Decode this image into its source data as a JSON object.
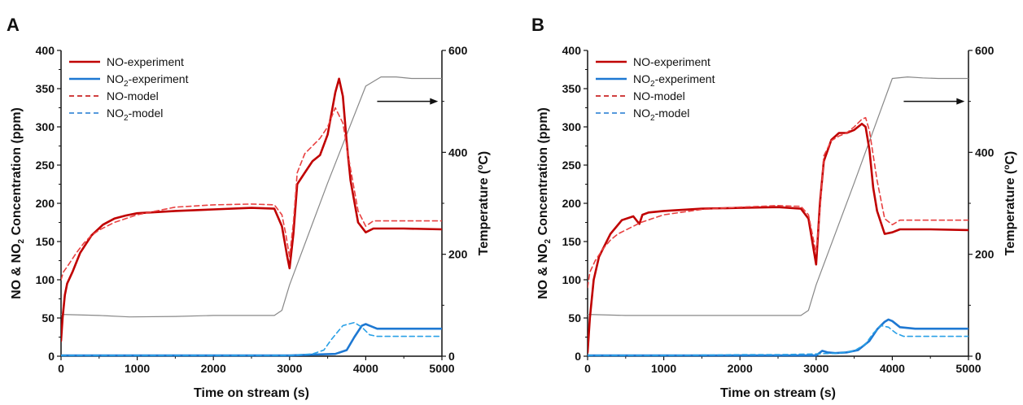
{
  "colors": {
    "no": "#c00000",
    "no2": "#1e78d2",
    "temp": "#888888",
    "axis": "#111111"
  },
  "panels": [
    {
      "letter": "A"
    },
    {
      "letter": "B"
    }
  ],
  "axis_text": {
    "xlabel": "Time on stream (s)",
    "ylabel_left_parts": [
      "NO & NO",
      "2",
      " Concentration (ppm)"
    ],
    "ylabel_right_parts": [
      "Temperature (",
      "o",
      "C)"
    ]
  },
  "legend": [
    {
      "id": "no-exp",
      "parts": [
        "NO-experiment"
      ],
      "style": "solid",
      "color_key": "no"
    },
    {
      "id": "no2-exp",
      "parts": [
        "NO",
        "2",
        "-experiment"
      ],
      "style": "solid",
      "color_key": "no2"
    },
    {
      "id": "no-model",
      "parts": [
        "NO-model"
      ],
      "style": "dashed",
      "color_key": "no"
    },
    {
      "id": "no2-model",
      "parts": [
        "NO",
        "2",
        "-model"
      ],
      "style": "dashed",
      "color_key": "no2"
    }
  ],
  "chart_data": [
    {
      "type": "line",
      "panel": "A",
      "xlabel": "Time on stream (s)",
      "ylabel": "NO & NO2 Concentration (ppm)",
      "y2label": "Temperature (oC)",
      "xlim": [
        0,
        5000
      ],
      "ylim": [
        0,
        400
      ],
      "y2lim": [
        0,
        600
      ],
      "xticks": [
        0,
        1000,
        2000,
        3000,
        4000,
        5000
      ],
      "yticks": [
        0,
        50,
        100,
        150,
        200,
        250,
        300,
        350,
        400
      ],
      "y2ticks": [
        0,
        200,
        400,
        600
      ],
      "annotation": "arrow pointing right toward the temperature axis",
      "legend_position": "top-left",
      "series": [
        {
          "name": "NO-experiment",
          "axis": "left",
          "style": "solid",
          "color": "#c00000",
          "x": [
            0,
            20,
            50,
            80,
            150,
            250,
            400,
            550,
            700,
            850,
            1000,
            1500,
            2000,
            2500,
            2800,
            2900,
            2970,
            3000,
            3050,
            3100,
            3200,
            3300,
            3400,
            3500,
            3600,
            3650,
            3700,
            3750,
            3800,
            3900,
            4000,
            4100,
            4500,
            5000
          ],
          "y": [
            20,
            50,
            80,
            95,
            110,
            135,
            158,
            172,
            180,
            184,
            187,
            190,
            192,
            194,
            193,
            170,
            130,
            115,
            160,
            225,
            240,
            255,
            263,
            290,
            345,
            363,
            340,
            280,
            230,
            175,
            162,
            167,
            167,
            166
          ]
        },
        {
          "name": "NO2-experiment",
          "axis": "left",
          "style": "solid",
          "color": "#1e78d2",
          "x": [
            0,
            1000,
            2000,
            3000,
            3300,
            3600,
            3750,
            3850,
            3950,
            4000,
            4050,
            4150,
            4300,
            4500,
            5000
          ],
          "y": [
            1,
            1,
            1,
            1,
            2,
            3,
            8,
            25,
            40,
            42,
            40,
            36,
            36,
            36,
            36
          ]
        },
        {
          "name": "NO-model",
          "axis": "left",
          "style": "dashed",
          "color": "#e84040",
          "x": [
            0,
            30,
            100,
            200,
            300,
            400,
            500,
            700,
            1000,
            1500,
            2000,
            2500,
            2800,
            2900,
            2950,
            3000,
            3050,
            3100,
            3200,
            3300,
            3400,
            3500,
            3600,
            3700,
            3800,
            3900,
            4000,
            4100,
            4500,
            5000
          ],
          "y": [
            100,
            110,
            120,
            135,
            148,
            158,
            165,
            175,
            185,
            195,
            198,
            199,
            198,
            185,
            160,
            130,
            175,
            240,
            265,
            275,
            285,
            300,
            325,
            305,
            245,
            190,
            170,
            177,
            177,
            177
          ]
        },
        {
          "name": "NO2-model",
          "axis": "left",
          "style": "dashed",
          "color": "#2aa0e6",
          "x": [
            0,
            1000,
            2000,
            3000,
            3300,
            3450,
            3550,
            3700,
            3850,
            3950,
            4050,
            4150,
            4500,
            5000
          ],
          "y": [
            1,
            1,
            1,
            1,
            3,
            8,
            22,
            40,
            44,
            38,
            28,
            26,
            26,
            26
          ]
        },
        {
          "name": "Temperature",
          "axis": "right",
          "style": "solid",
          "color": "#888888",
          "x": [
            0,
            500,
            900,
            1500,
            2000,
            2500,
            2800,
            2900,
            3000,
            3500,
            4000,
            4200,
            4400,
            4600,
            5000
          ],
          "y": [
            82,
            80,
            77,
            78,
            80,
            80,
            80,
            90,
            140,
            340,
            530,
            548,
            548,
            545,
            545
          ]
        }
      ]
    },
    {
      "type": "line",
      "panel": "B",
      "xlabel": "Time on stream (s)",
      "ylabel": "NO & NO2 Concentration (ppm)",
      "y2label": "Temperature (oC)",
      "xlim": [
        0,
        5000
      ],
      "ylim": [
        0,
        400
      ],
      "y2lim": [
        0,
        600
      ],
      "xticks": [
        0,
        1000,
        2000,
        3000,
        4000,
        5000
      ],
      "yticks": [
        0,
        50,
        100,
        150,
        200,
        250,
        300,
        350,
        400
      ],
      "y2ticks": [
        0,
        200,
        400,
        600
      ],
      "annotation": "arrow pointing right toward the temperature axis",
      "legend_position": "top-left",
      "series": [
        {
          "name": "NO-experiment",
          "axis": "left",
          "style": "solid",
          "color": "#c00000",
          "x": [
            0,
            30,
            80,
            150,
            300,
            450,
            600,
            680,
            720,
            800,
            1000,
            1500,
            2000,
            2500,
            2800,
            2900,
            2950,
            3000,
            3050,
            3100,
            3200,
            3300,
            3400,
            3500,
            3600,
            3650,
            3700,
            3750,
            3800,
            3900,
            4000,
            4100,
            4500,
            5000
          ],
          "y": [
            5,
            50,
            100,
            130,
            160,
            178,
            183,
            173,
            185,
            188,
            190,
            193,
            194,
            195,
            193,
            180,
            150,
            120,
            200,
            255,
            283,
            292,
            292,
            296,
            304,
            300,
            270,
            220,
            190,
            160,
            162,
            166,
            166,
            165
          ]
        },
        {
          "name": "NO2-experiment",
          "axis": "left",
          "style": "solid",
          "color": "#1e78d2",
          "x": [
            0,
            1000,
            2000,
            3000,
            3080,
            3150,
            3250,
            3400,
            3550,
            3700,
            3800,
            3900,
            3950,
            4000,
            4100,
            4300,
            5000
          ],
          "y": [
            1,
            1,
            1,
            1,
            7,
            5,
            4,
            5,
            8,
            20,
            35,
            45,
            48,
            46,
            38,
            36,
            36
          ]
        },
        {
          "name": "NO-model",
          "axis": "left",
          "style": "dashed",
          "color": "#e84040",
          "x": [
            0,
            30,
            100,
            200,
            300,
            400,
            500,
            700,
            1000,
            1500,
            2000,
            2500,
            2800,
            2900,
            2950,
            3000,
            3050,
            3100,
            3200,
            3300,
            3400,
            3500,
            3600,
            3650,
            3700,
            3800,
            3900,
            4000,
            4100,
            4500,
            5000
          ],
          "y": [
            90,
            110,
            125,
            140,
            152,
            160,
            165,
            175,
            185,
            192,
            195,
            197,
            196,
            185,
            160,
            135,
            190,
            262,
            282,
            288,
            292,
            300,
            310,
            312,
            295,
            230,
            180,
            172,
            178,
            178,
            178
          ]
        },
        {
          "name": "NO2-model",
          "axis": "left",
          "style": "dashed",
          "color": "#2aa0e6",
          "x": [
            0,
            1000,
            2000,
            2500,
            3000,
            3300,
            3500,
            3650,
            3750,
            3850,
            3950,
            4050,
            4150,
            4500,
            5000
          ],
          "y": [
            1,
            1,
            2,
            2,
            3,
            4,
            7,
            16,
            30,
            40,
            38,
            30,
            26,
            26,
            26
          ]
        },
        {
          "name": "Temperature",
          "axis": "right",
          "style": "solid",
          "color": "#888888",
          "x": [
            0,
            500,
            1000,
            1500,
            2000,
            2500,
            2800,
            2900,
            3000,
            3500,
            4000,
            4200,
            4400,
            4600,
            5000
          ],
          "y": [
            82,
            80,
            80,
            80,
            80,
            80,
            80,
            90,
            140,
            340,
            545,
            548,
            546,
            545,
            545
          ]
        }
      ]
    }
  ]
}
